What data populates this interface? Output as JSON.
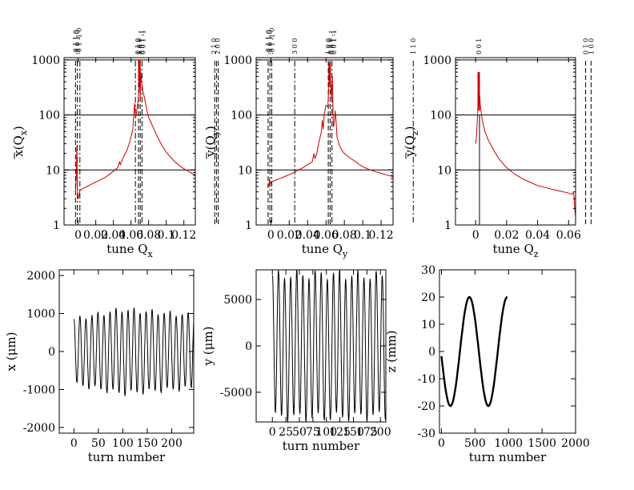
{
  "chart_data": [
    {
      "type": "line",
      "id": "spec-x",
      "xlabel": "tune Q",
      "xlabel_sub": "x",
      "ylabel": "x(Q",
      "ylabel_sub": "x",
      "ylabel_close": ")",
      "yscale": "log",
      "xlim": [
        -0.016,
        0.133
      ],
      "ylim": [
        1,
        1100
      ],
      "xticks": [
        0,
        0.02,
        0.04,
        0.06,
        0.08,
        0.1,
        0.12
      ],
      "xtick_labels": [
        "0",
        "0.02",
        "0.04",
        "0.06",
        "0.08",
        "0.1",
        "0.12"
      ],
      "yticks": [
        1,
        10,
        100,
        1000
      ],
      "ytick_labels": [
        "1",
        "10",
        "100",
        "1000"
      ],
      "grid_y": [
        10,
        100,
        1000
      ],
      "series": [
        {
          "name": "spectrum",
          "color": "#cc0000",
          "x": [
            -0.003,
            -0.002,
            -0.0015,
            -0.001,
            -0.0005,
            0,
            0.002,
            0.005,
            0.01,
            0.015,
            0.02,
            0.025,
            0.03,
            0.035,
            0.04,
            0.045,
            0.047,
            0.048,
            0.05,
            0.052,
            0.055,
            0.058,
            0.06,
            0.062,
            0.064,
            0.065,
            0.066,
            0.067,
            0.068,
            0.069,
            0.0695,
            0.07,
            0.0705,
            0.071,
            0.072,
            0.073,
            0.074,
            0.076,
            0.078,
            0.08,
            0.085,
            0.09,
            0.095,
            0.1,
            0.105,
            0.11,
            0.115,
            0.12,
            0.125,
            0.13,
            0.133
          ],
          "y": [
            4,
            8,
            27,
            6,
            3,
            3,
            4.2,
            4.6,
            5,
            5.5,
            6,
            6.6,
            7.2,
            8.2,
            9.5,
            11,
            14,
            12.5,
            15,
            18,
            22,
            30,
            40,
            55,
            165,
            90,
            100,
            140,
            180,
            300,
            900,
            350,
            180,
            600,
            400,
            300,
            250,
            180,
            120,
            90,
            60,
            40,
            28,
            21,
            17,
            14,
            12,
            10.5,
            9.5,
            8.5,
            8
          ]
        }
      ],
      "peak_bar": {
        "x": 0.0695,
        "y_low": 400,
        "y_high": 1000,
        "color": "#cc0000"
      },
      "vlines": [
        {
          "x": -0.003,
          "style": "dash"
        },
        {
          "x": -0.001,
          "style": "dashdot"
        },
        {
          "x": 0.002,
          "style": "dashdot"
        },
        {
          "x": 0.065,
          "style": "dashdot"
        },
        {
          "x": 0.0685,
          "style": "dash"
        },
        {
          "x": 0.0705,
          "style": "dash"
        },
        {
          "x": 0.0725,
          "style": "dashdot"
        },
        {
          "x": 0.155,
          "style": "dash"
        },
        {
          "x": 0.157,
          "style": "dashdot"
        },
        {
          "x": 0.159,
          "style": "dash"
        }
      ],
      "resonance_labels": [
        {
          "x": -0.003,
          "text": "-0 1 1 0"
        },
        {
          "x": -0.001,
          "text": "-1 0 1 0"
        },
        {
          "x": 0.001,
          "text": "-0 1 -1 0"
        },
        {
          "x": 0.0675,
          "text": "0 1 0"
        },
        {
          "x": 0.0695,
          "text": "1 0 0"
        },
        {
          "x": 0.0715,
          "text": "0 0 1 -1"
        },
        {
          "x": 0.0735,
          "text": "0 0 1 -1"
        },
        {
          "x": 0.154,
          "text": "2 1 0"
        },
        {
          "x": 0.158,
          "text": "2 0 0"
        }
      ]
    },
    {
      "type": "line",
      "id": "spec-y",
      "xlabel": "tune Q",
      "xlabel_sub": "y",
      "ylabel": "y(Q",
      "ylabel_sub": "y",
      "ylabel_close": ")",
      "yscale": "log",
      "xlim": [
        -0.016,
        0.133
      ],
      "ylim": [
        1,
        1100
      ],
      "xticks": [
        0,
        0.02,
        0.04,
        0.06,
        0.08,
        0.1,
        0.12
      ],
      "xtick_labels": [
        "0",
        "0.02",
        "0.04",
        "0.06",
        "0.08",
        "0.1",
        "0.12"
      ],
      "yticks": [
        1,
        10,
        100,
        1000
      ],
      "ytick_labels": [
        "1",
        "10",
        "100",
        "1000"
      ],
      "grid_y": [
        10,
        100,
        1000
      ],
      "series": [
        {
          "name": "spectrum",
          "color": "#cc0000",
          "x": [
            -0.002,
            -0.0015,
            -0.001,
            -0.0005,
            0,
            0.002,
            0.005,
            0.01,
            0.015,
            0.02,
            0.025,
            0.03,
            0.035,
            0.04,
            0.045,
            0.047,
            0.048,
            0.05,
            0.052,
            0.055,
            0.056,
            0.057,
            0.058,
            0.06,
            0.062,
            0.063,
            0.064,
            0.065,
            0.066,
            0.067,
            0.068,
            0.069,
            0.07,
            0.071,
            0.072,
            0.074,
            0.076,
            0.078,
            0.08,
            0.085,
            0.09,
            0.095,
            0.1,
            0.105,
            0.11,
            0.115,
            0.12,
            0.125,
            0.13,
            0.133
          ],
          "y": [
            5,
            7,
            5.5,
            5.5,
            6,
            6.2,
            6.5,
            7,
            7.6,
            8.2,
            9,
            10,
            11,
            12.5,
            14,
            20,
            16,
            20,
            30,
            50,
            80,
            55,
            100,
            150,
            140,
            300,
            900,
            400,
            200,
            500,
            60,
            70,
            120,
            80,
            40,
            30,
            25,
            22,
            20,
            17,
            15,
            13,
            11.5,
            10.5,
            9.8,
            9.2,
            8.7,
            8.2,
            7.8,
            7.5
          ]
        }
      ],
      "peak_bar": {
        "x": 0.064,
        "y_low": 350,
        "y_high": 900,
        "color": "#cc0000"
      },
      "vlines": [
        {
          "x": -0.003,
          "style": "dash"
        },
        {
          "x": -0.001,
          "style": "dashdot"
        },
        {
          "x": 0.001,
          "style": "dashdot"
        },
        {
          "x": 0.026,
          "style": "dashdot"
        },
        {
          "x": 0.0625,
          "style": "dash"
        },
        {
          "x": 0.0645,
          "style": "dash"
        },
        {
          "x": 0.0665,
          "style": "dashdot"
        },
        {
          "x": 0.155,
          "style": "dashdot"
        }
      ],
      "resonance_labels": [
        {
          "x": -0.003,
          "text": "-0 1 1 0"
        },
        {
          "x": -0.001,
          "text": "-1 0 1 0"
        },
        {
          "x": 0.001,
          "text": "-0 1 -1 0"
        },
        {
          "x": 0.026,
          "text": "3 0 0"
        },
        {
          "x": 0.0625,
          "text": "1 0 0"
        },
        {
          "x": 0.0645,
          "text": "0 1 0"
        },
        {
          "x": 0.0665,
          "text": "0 0 1 -1"
        },
        {
          "x": 0.0685,
          "text": "0 0 1 -1"
        },
        {
          "x": 0.155,
          "text": "1 1 0"
        }
      ]
    },
    {
      "type": "line",
      "id": "spec-z",
      "xlabel": "tune Q",
      "xlabel_sub": "z",
      "ylabel": "y(Q",
      "ylabel_sub": "z",
      "ylabel_close": ")",
      "yscale": "log",
      "xlim": [
        -0.013,
        0.0645
      ],
      "ylim": [
        1,
        1100
      ],
      "xticks": [
        0,
        0.02,
        0.04,
        0.06
      ],
      "xtick_labels": [
        "0",
        "0.02",
        "0.04",
        "0.06"
      ],
      "yticks": [
        1,
        10,
        100,
        1000
      ],
      "ytick_labels": [
        "1",
        "10",
        "100",
        "1000"
      ],
      "grid_y": [
        10,
        100,
        1000
      ],
      "series": [
        {
          "name": "spectrum",
          "color": "#cc0000",
          "x": [
            0,
            0.0005,
            0.001,
            0.0015,
            0.002,
            0.0025,
            0.003,
            0.004,
            0.005,
            0.006,
            0.008,
            0.01,
            0.012,
            0.015,
            0.02,
            0.025,
            0.03,
            0.035,
            0.04,
            0.045,
            0.05,
            0.055,
            0.06,
            0.062,
            0.063,
            0.0635,
            0.064,
            0.0645
          ],
          "y": [
            30,
            40,
            70,
            150,
            600,
            250,
            150,
            90,
            65,
            50,
            36,
            28,
            22,
            16,
            11,
            8.5,
            7,
            6,
            5.2,
            4.8,
            4.4,
            4.1,
            3.8,
            3.6,
            3.9,
            3.4,
            2,
            1.4
          ]
        }
      ],
      "peak_bar": {
        "x": 0.002,
        "y_low": 120,
        "y_high": 600,
        "color": "#cc0000"
      },
      "vlines": [
        {
          "x": 0.0025,
          "style": "solid",
          "y_low": 1,
          "y_high": 100
        },
        {
          "x": 0.071,
          "style": "dash"
        },
        {
          "x": 0.0745,
          "style": "dash"
        }
      ],
      "resonance_labels": [
        {
          "x": 0.002,
          "text": "0 0 1"
        },
        {
          "x": 0.071,
          "text": "0 1 0"
        },
        {
          "x": 0.0745,
          "text": "1 0 0"
        }
      ]
    },
    {
      "type": "line",
      "id": "orbit-x",
      "xlabel": "turn number",
      "ylabel": "x (μm)",
      "xlim": [
        -30,
        245
      ],
      "ylim": [
        -2150,
        2150
      ],
      "xticks": [
        0,
        50,
        100,
        150,
        200
      ],
      "xtick_labels": [
        "0",
        "50",
        "100",
        "150",
        "200"
      ],
      "yticks": [
        -2000,
        -1000,
        0,
        1000,
        2000
      ],
      "ytick_labels": [
        "-2000",
        "-1000",
        "0",
        "1000",
        "2000"
      ],
      "osc": {
        "x0": 0,
        "x1": 245,
        "period": 12.3,
        "amp_start": 850,
        "amp_peak": 1100,
        "amp_end": 950,
        "color": "#000000"
      }
    },
    {
      "type": "line",
      "id": "orbit-y",
      "xlabel": "turn number",
      "ylabel": "y (μm)",
      "xlim": [
        -30,
        210
      ],
      "ylim": [
        -8200,
        8200
      ],
      "xticks": [
        0,
        25,
        50,
        75,
        100,
        125,
        150,
        175,
        200
      ],
      "xtick_labels": [
        "0",
        "25",
        "50",
        "75",
        "100",
        "125",
        "150",
        "175",
        "200"
      ],
      "yticks": [
        -5000,
        0,
        5000
      ],
      "ytick_labels": [
        "-5000",
        "0",
        "5000"
      ],
      "osc": {
        "x0": 0,
        "x1": 210,
        "period": 11.3,
        "amp_start": 7600,
        "amp_peak": 7700,
        "amp_end": 7500,
        "color": "#000000"
      }
    },
    {
      "type": "line",
      "id": "orbit-z",
      "xlabel": "turn number",
      "ylabel": "z (mm)",
      "xlim": [
        -30,
        2000
      ],
      "ylim": [
        -30,
        30
      ],
      "xticks": [
        0,
        500,
        1000,
        1500,
        2000
      ],
      "xtick_labels": [
        "0",
        "500",
        "1000",
        "1500",
        "2000"
      ],
      "yticks": [
        -30,
        -20,
        -10,
        0,
        10,
        20,
        30
      ],
      "ytick_labels": [
        "-30",
        "-20",
        "-10",
        "0",
        "10",
        "20",
        "30"
      ],
      "synch": {
        "x0": 0,
        "x1": 980,
        "amp": 20,
        "period": 565,
        "phase_deg": 185,
        "color": "#000000"
      }
    }
  ]
}
